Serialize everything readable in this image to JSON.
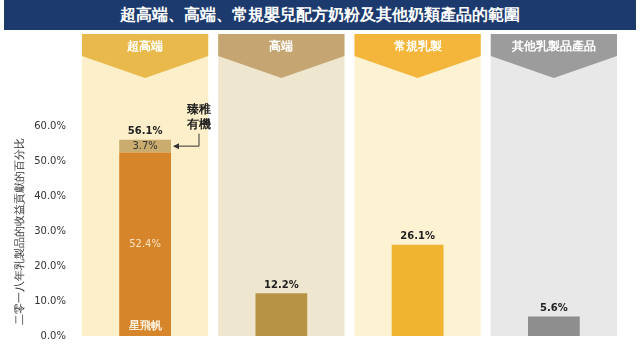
{
  "chart_data": {
    "type": "bar",
    "title": "超高端、高端、常規嬰兒配方奶粉及其他奶類產品的範圍",
    "y_label": "二零一八年乳製品的收益貢獻的百分比",
    "categories": [
      "超高端",
      "高端",
      "常規乳製",
      "其他乳製品產品"
    ],
    "series": [
      {
        "name": "星飛帆",
        "values": [
          52.4,
          null,
          null,
          null
        ],
        "value_labels": [
          "52.4%",
          null,
          null,
          null
        ],
        "color": "#d7852a"
      },
      {
        "name": "臻稚有機",
        "values": [
          3.7,
          null,
          null,
          null
        ],
        "value_labels": [
          "3.7%",
          null,
          null,
          null
        ],
        "color": "#c9ac6e"
      },
      {
        "values": [
          null,
          12.2,
          26.1,
          5.6
        ],
        "value_labels": [
          null,
          "12.2%",
          "26.1%",
          "5.6%"
        ],
        "colors": [
          "#b79445",
          "#b79445",
          "#f1b430",
          "#8e8e8e"
        ]
      }
    ],
    "totals": {
      "values": [
        56.1,
        null,
        null,
        null
      ],
      "value_labels": [
        "56.1%",
        null,
        null,
        null
      ]
    },
    "stacked": true,
    "data_labels": true,
    "grid": false,
    "tick_labels": "y",
    "ylim": [
      0,
      60
    ],
    "yticks": [
      {
        "value": 0,
        "label": "0.0%"
      },
      {
        "value": 10,
        "label": "10.0%"
      },
      {
        "value": 20,
        "label": "20.0%"
      },
      {
        "value": 30,
        "label": "30.0%"
      },
      {
        "value": 40,
        "label": "40.0%"
      },
      {
        "value": 50,
        "label": "50.0%"
      },
      {
        "value": 60,
        "label": "60.0%"
      }
    ]
  }
}
